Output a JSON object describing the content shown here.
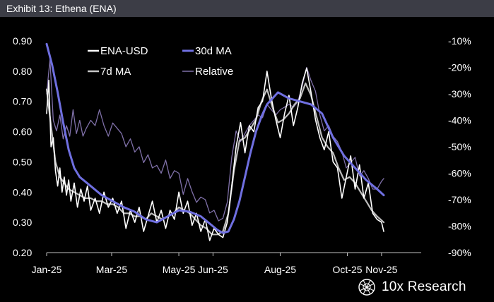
{
  "title": "Exhibit 13: Ethena (ENA)",
  "brand": {
    "name": "10x Research",
    "logo": "globe-icon"
  },
  "colors": {
    "background": "#000000",
    "title_bar": "#3c3d46",
    "ena_usd": "#ffffff",
    "ma7": "#c7c7c7",
    "ma30": "#6f6fe0",
    "relative": "#7f70a8"
  },
  "chart_data": {
    "type": "line",
    "x_ticks": [
      "Jan-25",
      "Mar-25",
      "May-25",
      "Jun-25",
      "Aug-25",
      "Oct-25",
      "Nov-25"
    ],
    "x_tick_day": [
      0,
      59,
      120,
      151,
      212,
      273,
      304
    ],
    "xlim": [
      0,
      340
    ],
    "ylim_left": [
      0.2,
      0.9
    ],
    "y_ticks_left": [
      "0.20",
      "0.30",
      "0.40",
      "0.50",
      "0.60",
      "0.70",
      "0.80",
      "0.90"
    ],
    "ylim_right": [
      -90,
      -10
    ],
    "y_ticks_right": [
      "-10%",
      "-20%",
      "-30%",
      "-40%",
      "-50%",
      "-60%",
      "-70%",
      "-80%",
      "-90%"
    ],
    "legend": [
      {
        "label": "ENA-USD",
        "key": "ena_usd"
      },
      {
        "label": "30d MA",
        "key": "ma30"
      },
      {
        "label": "7d MA",
        "key": "ma7"
      },
      {
        "label": "Relative",
        "key": "relative"
      }
    ],
    "series": [
      {
        "name": "ENA-USD",
        "key": "ena_usd",
        "axis": "left",
        "x": [
          0,
          2,
          4,
          6,
          8,
          10,
          12,
          14,
          16,
          18,
          20,
          22,
          25,
          28,
          31,
          34,
          37,
          40,
          44,
          48,
          52,
          56,
          60,
          64,
          68,
          72,
          76,
          80,
          84,
          88,
          92,
          96,
          100,
          104,
          108,
          112,
          116,
          120,
          124,
          128,
          132,
          136,
          140,
          144,
          148,
          152,
          156,
          160,
          164,
          168,
          172,
          176,
          180,
          184,
          188,
          192,
          196,
          200,
          204,
          208,
          212,
          216,
          220,
          224,
          228,
          232,
          236,
          240,
          244,
          248,
          252,
          256,
          260,
          264,
          268,
          272,
          276,
          280,
          284,
          288,
          292,
          296,
          300,
          304,
          306
        ],
        "y": [
          0.66,
          0.77,
          0.55,
          0.58,
          0.47,
          0.42,
          0.48,
          0.4,
          0.45,
          0.39,
          0.44,
          0.37,
          0.43,
          0.35,
          0.41,
          0.37,
          0.42,
          0.34,
          0.38,
          0.33,
          0.4,
          0.35,
          0.38,
          0.33,
          0.37,
          0.28,
          0.34,
          0.3,
          0.35,
          0.27,
          0.32,
          0.37,
          0.3,
          0.34,
          0.28,
          0.34,
          0.31,
          0.4,
          0.33,
          0.37,
          0.29,
          0.33,
          0.27,
          0.31,
          0.24,
          0.28,
          0.26,
          0.25,
          0.3,
          0.42,
          0.55,
          0.63,
          0.53,
          0.62,
          0.6,
          0.68,
          0.7,
          0.8,
          0.71,
          0.64,
          0.58,
          0.66,
          0.72,
          0.62,
          0.68,
          0.76,
          0.81,
          0.73,
          0.64,
          0.58,
          0.54,
          0.6,
          0.5,
          0.48,
          0.38,
          0.45,
          0.52,
          0.41,
          0.49,
          0.38,
          0.43,
          0.33,
          0.31,
          0.3,
          0.27
        ]
      },
      {
        "name": "7d MA",
        "key": "ma7",
        "axis": "left",
        "x": [
          0,
          4,
          8,
          12,
          16,
          20,
          25,
          30,
          35,
          40,
          45,
          50,
          55,
          60,
          65,
          70,
          75,
          80,
          85,
          90,
          95,
          100,
          105,
          110,
          115,
          120,
          125,
          130,
          135,
          140,
          145,
          150,
          155,
          160,
          165,
          170,
          175,
          180,
          185,
          190,
          195,
          200,
          205,
          210,
          215,
          220,
          225,
          230,
          235,
          240,
          245,
          250,
          255,
          260,
          265,
          270,
          275,
          280,
          285,
          290,
          295,
          300,
          306
        ],
        "y": [
          0.74,
          0.62,
          0.5,
          0.45,
          0.43,
          0.41,
          0.4,
          0.39,
          0.38,
          0.38,
          0.37,
          0.37,
          0.36,
          0.36,
          0.35,
          0.33,
          0.33,
          0.32,
          0.32,
          0.31,
          0.33,
          0.32,
          0.31,
          0.32,
          0.33,
          0.35,
          0.34,
          0.33,
          0.31,
          0.29,
          0.28,
          0.26,
          0.26,
          0.27,
          0.33,
          0.47,
          0.57,
          0.58,
          0.61,
          0.64,
          0.7,
          0.74,
          0.68,
          0.63,
          0.64,
          0.66,
          0.69,
          0.71,
          0.76,
          0.72,
          0.65,
          0.58,
          0.55,
          0.53,
          0.48,
          0.44,
          0.45,
          0.43,
          0.4,
          0.37,
          0.34,
          0.32,
          0.3
        ]
      },
      {
        "name": "30d MA",
        "key": "ma30",
        "axis": "left",
        "x": [
          0,
          5,
          10,
          15,
          20,
          25,
          30,
          40,
          50,
          60,
          70,
          80,
          90,
          100,
          110,
          120,
          130,
          140,
          150,
          155,
          160,
          165,
          170,
          175,
          180,
          185,
          190,
          195,
          200,
          210,
          220,
          230,
          240,
          250,
          260,
          270,
          280,
          290,
          300,
          306
        ],
        "y": [
          0.89,
          0.82,
          0.73,
          0.63,
          0.54,
          0.48,
          0.45,
          0.42,
          0.39,
          0.37,
          0.35,
          0.335,
          0.31,
          0.3,
          0.32,
          0.34,
          0.335,
          0.32,
          0.29,
          0.275,
          0.265,
          0.27,
          0.31,
          0.37,
          0.45,
          0.53,
          0.6,
          0.65,
          0.69,
          0.73,
          0.71,
          0.7,
          0.69,
          0.66,
          0.58,
          0.52,
          0.48,
          0.44,
          0.41,
          0.39
        ]
      },
      {
        "name": "Relative",
        "key": "relative",
        "axis": "right",
        "x": [
          0,
          3,
          6,
          9,
          12,
          15,
          18,
          21,
          24,
          27,
          30,
          33,
          36,
          40,
          44,
          48,
          52,
          56,
          60,
          64,
          68,
          72,
          76,
          80,
          84,
          88,
          92,
          96,
          100,
          104,
          108,
          112,
          116,
          120,
          124,
          128,
          132,
          136,
          140,
          144,
          148,
          152,
          156,
          160,
          164,
          168,
          172,
          176,
          180,
          184,
          188,
          192,
          196,
          200,
          204,
          208,
          212,
          216,
          220,
          224,
          228,
          232,
          236,
          240,
          244,
          248,
          252,
          256,
          260,
          264,
          268,
          272,
          276,
          280,
          284,
          288,
          292,
          296,
          300,
          304,
          306
        ],
        "y": [
          -30,
          -17,
          -40,
          -44,
          -38,
          -47,
          -42,
          -46,
          -36,
          -45,
          -40,
          -46,
          -43,
          -40,
          -42,
          -36,
          -42,
          -46,
          -41,
          -43,
          -45,
          -50,
          -47,
          -52,
          -50,
          -56,
          -53,
          -58,
          -57,
          -60,
          -55,
          -62,
          -59,
          -60,
          -68,
          -62,
          -67,
          -71,
          -69,
          -70,
          -75,
          -74,
          -78,
          -77,
          -71,
          -54,
          -44,
          -48,
          -45,
          -42,
          -40,
          -38,
          -39,
          -34,
          -36,
          -38,
          -36,
          -35,
          -34,
          -35,
          -33,
          -27,
          -20,
          -25,
          -29,
          -38,
          -44,
          -42,
          -46,
          -48,
          -52,
          -58,
          -56,
          -54,
          -61,
          -59,
          -62,
          -66,
          -66,
          -63,
          -62
        ]
      }
    ]
  }
}
